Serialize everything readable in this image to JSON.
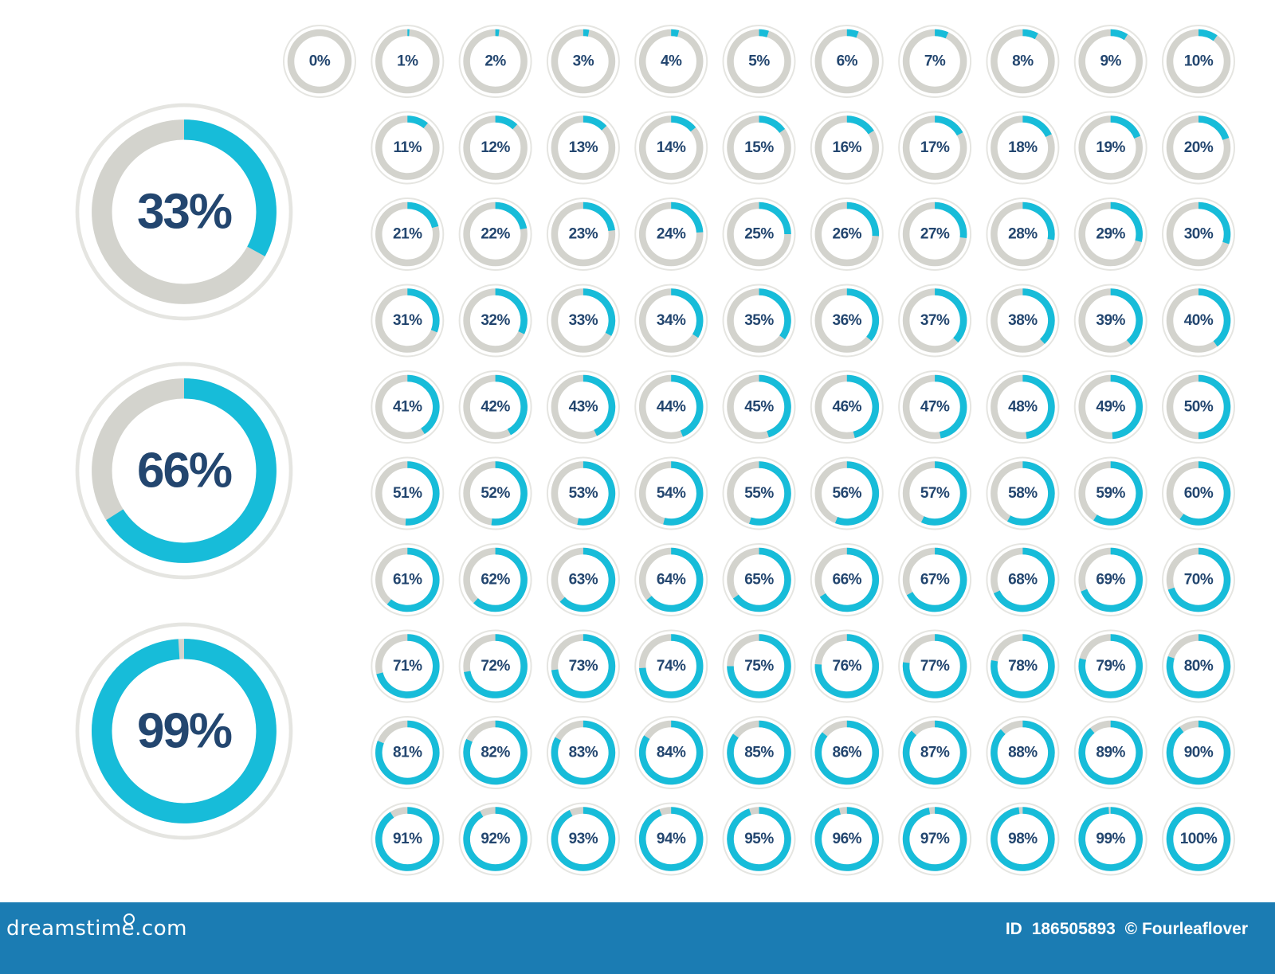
{
  "colors": {
    "fill": "#17bcd9",
    "track": "#d3d3cd",
    "outer_ring": "#e5e5e1",
    "label": "#23466f",
    "footer_bg": "#1b7cb3",
    "footer_text": "#ffffff"
  },
  "large_gauges": [
    {
      "value": 33,
      "label": "33%"
    },
    {
      "value": 66,
      "label": "66%"
    },
    {
      "value": 99,
      "label": "99%"
    }
  ],
  "small_gauges": [
    {
      "value": 0,
      "label": "0%"
    },
    {
      "value": 1,
      "label": "1%"
    },
    {
      "value": 2,
      "label": "2%"
    },
    {
      "value": 3,
      "label": "3%"
    },
    {
      "value": 4,
      "label": "4%"
    },
    {
      "value": 5,
      "label": "5%"
    },
    {
      "value": 6,
      "label": "6%"
    },
    {
      "value": 7,
      "label": "7%"
    },
    {
      "value": 8,
      "label": "8%"
    },
    {
      "value": 9,
      "label": "9%"
    },
    {
      "value": 10,
      "label": "10%"
    },
    {
      "value": 11,
      "label": "11%"
    },
    {
      "value": 12,
      "label": "12%"
    },
    {
      "value": 13,
      "label": "13%"
    },
    {
      "value": 14,
      "label": "14%"
    },
    {
      "value": 15,
      "label": "15%"
    },
    {
      "value": 16,
      "label": "16%"
    },
    {
      "value": 17,
      "label": "17%"
    },
    {
      "value": 18,
      "label": "18%"
    },
    {
      "value": 19,
      "label": "19%"
    },
    {
      "value": 20,
      "label": "20%"
    },
    {
      "value": 21,
      "label": "21%"
    },
    {
      "value": 22,
      "label": "22%"
    },
    {
      "value": 23,
      "label": "23%"
    },
    {
      "value": 24,
      "label": "24%"
    },
    {
      "value": 25,
      "label": "25%"
    },
    {
      "value": 26,
      "label": "26%"
    },
    {
      "value": 27,
      "label": "27%"
    },
    {
      "value": 28,
      "label": "28%"
    },
    {
      "value": 29,
      "label": "29%"
    },
    {
      "value": 30,
      "label": "30%"
    },
    {
      "value": 31,
      "label": "31%"
    },
    {
      "value": 32,
      "label": "32%"
    },
    {
      "value": 33,
      "label": "33%"
    },
    {
      "value": 34,
      "label": "34%"
    },
    {
      "value": 35,
      "label": "35%"
    },
    {
      "value": 36,
      "label": "36%"
    },
    {
      "value": 37,
      "label": "37%"
    },
    {
      "value": 38,
      "label": "38%"
    },
    {
      "value": 39,
      "label": "39%"
    },
    {
      "value": 40,
      "label": "40%"
    },
    {
      "value": 41,
      "label": "41%"
    },
    {
      "value": 42,
      "label": "42%"
    },
    {
      "value": 43,
      "label": "43%"
    },
    {
      "value": 44,
      "label": "44%"
    },
    {
      "value": 45,
      "label": "45%"
    },
    {
      "value": 46,
      "label": "46%"
    },
    {
      "value": 47,
      "label": "47%"
    },
    {
      "value": 48,
      "label": "48%"
    },
    {
      "value": 49,
      "label": "49%"
    },
    {
      "value": 50,
      "label": "50%"
    },
    {
      "value": 51,
      "label": "51%"
    },
    {
      "value": 52,
      "label": "52%"
    },
    {
      "value": 53,
      "label": "53%"
    },
    {
      "value": 54,
      "label": "54%"
    },
    {
      "value": 55,
      "label": "55%"
    },
    {
      "value": 56,
      "label": "56%"
    },
    {
      "value": 57,
      "label": "57%"
    },
    {
      "value": 58,
      "label": "58%"
    },
    {
      "value": 59,
      "label": "59%"
    },
    {
      "value": 60,
      "label": "60%"
    },
    {
      "value": 61,
      "label": "61%"
    },
    {
      "value": 62,
      "label": "62%"
    },
    {
      "value": 63,
      "label": "63%"
    },
    {
      "value": 64,
      "label": "64%"
    },
    {
      "value": 65,
      "label": "65%"
    },
    {
      "value": 66,
      "label": "66%"
    },
    {
      "value": 67,
      "label": "67%"
    },
    {
      "value": 68,
      "label": "68%"
    },
    {
      "value": 69,
      "label": "69%"
    },
    {
      "value": 70,
      "label": "70%"
    },
    {
      "value": 71,
      "label": "71%"
    },
    {
      "value": 72,
      "label": "72%"
    },
    {
      "value": 73,
      "label": "73%"
    },
    {
      "value": 74,
      "label": "74%"
    },
    {
      "value": 75,
      "label": "75%"
    },
    {
      "value": 76,
      "label": "76%"
    },
    {
      "value": 77,
      "label": "77%"
    },
    {
      "value": 78,
      "label": "78%"
    },
    {
      "value": 79,
      "label": "79%"
    },
    {
      "value": 80,
      "label": "80%"
    },
    {
      "value": 81,
      "label": "81%"
    },
    {
      "value": 82,
      "label": "82%"
    },
    {
      "value": 83,
      "label": "83%"
    },
    {
      "value": 84,
      "label": "84%"
    },
    {
      "value": 85,
      "label": "85%"
    },
    {
      "value": 86,
      "label": "86%"
    },
    {
      "value": 87,
      "label": "87%"
    },
    {
      "value": 88,
      "label": "88%"
    },
    {
      "value": 89,
      "label": "89%"
    },
    {
      "value": 90,
      "label": "90%"
    },
    {
      "value": 91,
      "label": "91%"
    },
    {
      "value": 92,
      "label": "92%"
    },
    {
      "value": 93,
      "label": "93%"
    },
    {
      "value": 94,
      "label": "94%"
    },
    {
      "value": 95,
      "label": "95%"
    },
    {
      "value": 96,
      "label": "96%"
    },
    {
      "value": 97,
      "label": "97%"
    },
    {
      "value": 98,
      "label": "98%"
    },
    {
      "value": 99,
      "label": "99%"
    },
    {
      "value": 100,
      "label": "100%"
    }
  ],
  "footer": {
    "brand": "dreamstime.com",
    "id_label": "ID",
    "id_number": "186505893",
    "credit": "© Fourleaflover"
  }
}
